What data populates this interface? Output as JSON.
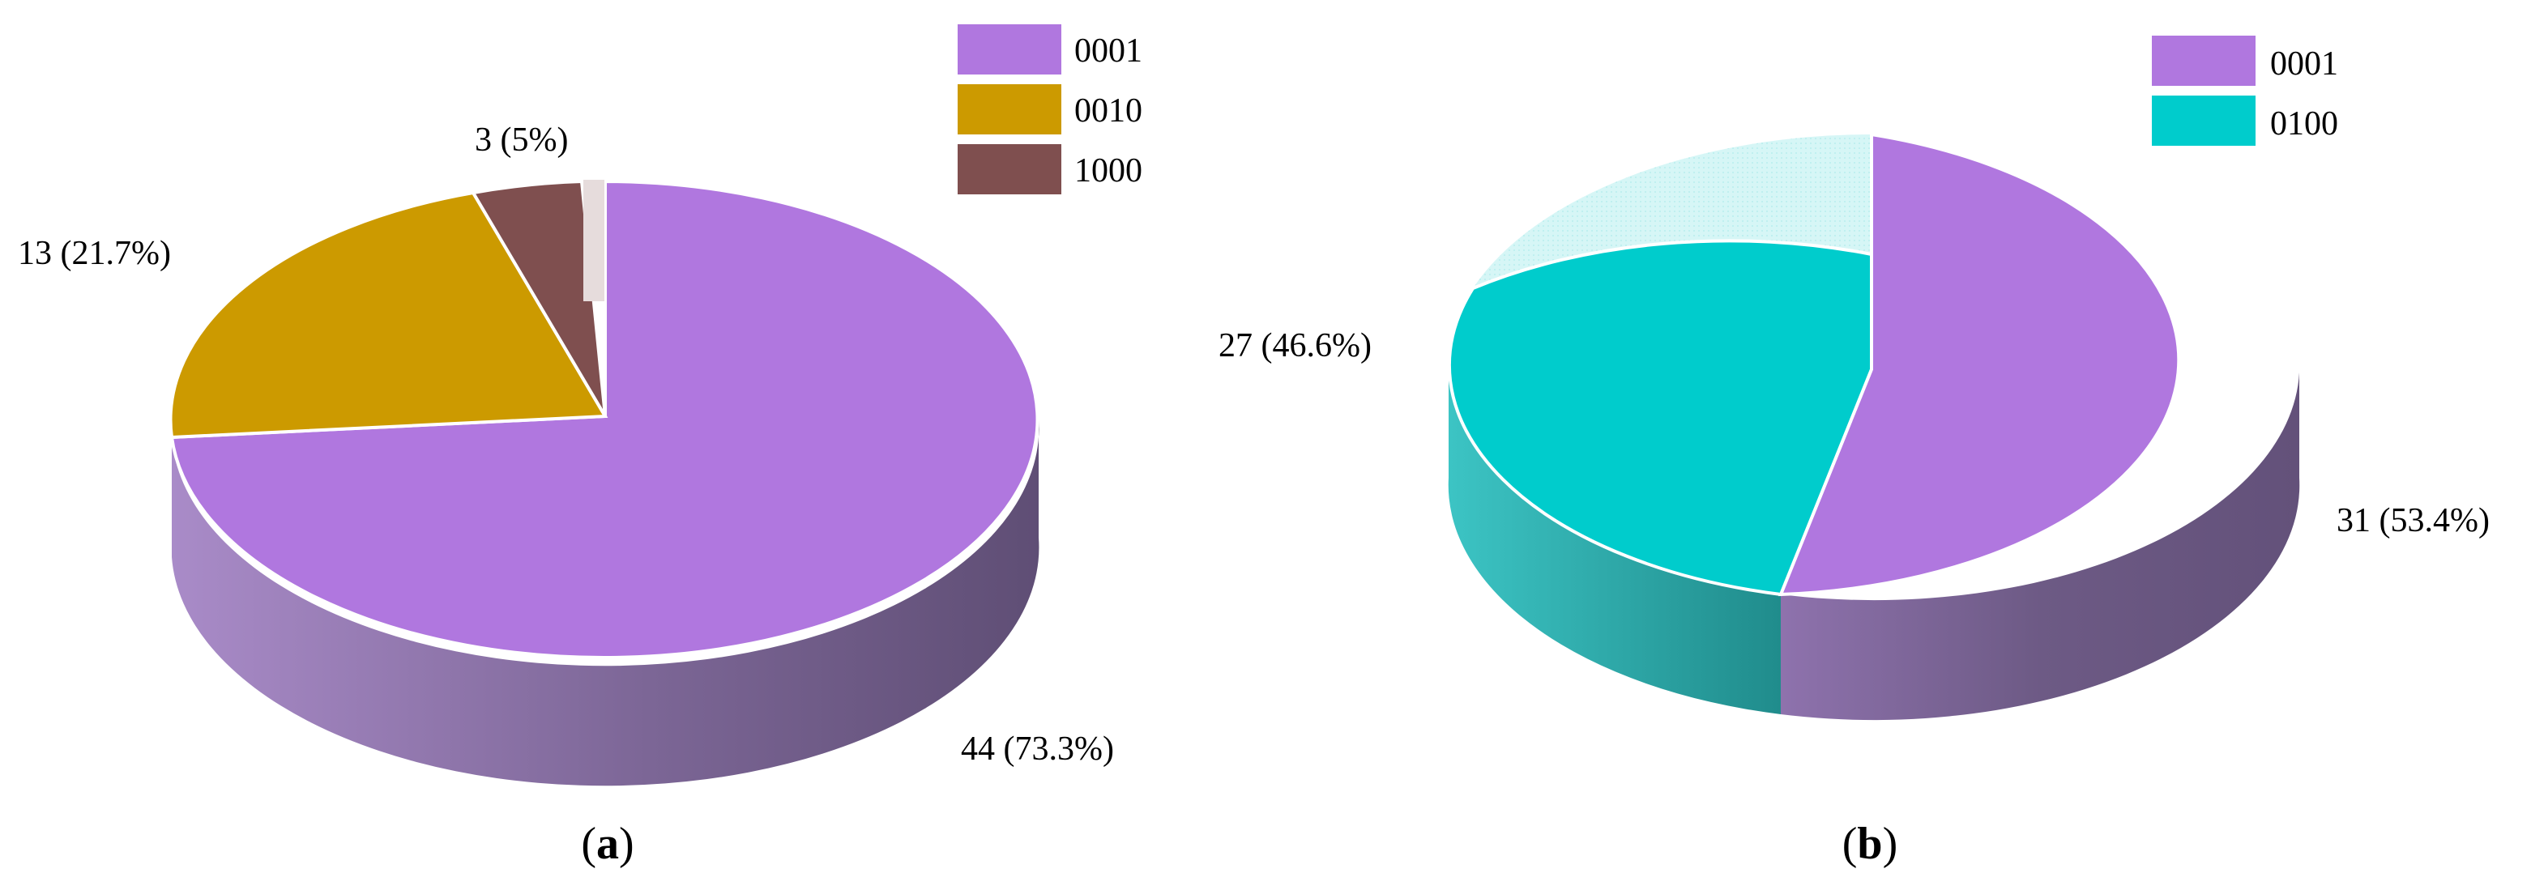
{
  "colors": {
    "0001": "#B077DF",
    "0010": "#CC9A00",
    "1000": "#7F4F4F",
    "0100": "#00CCCC",
    "edge": "#FFFFFF"
  },
  "chart_data": [
    {
      "type": "pie",
      "panel": "a",
      "legend_position": "top-right",
      "slices": [
        {
          "name": "0001",
          "value": 44,
          "label": "44 (73.3%)"
        },
        {
          "name": "0010",
          "value": 13,
          "label": "13 (21.7%)"
        },
        {
          "name": "1000",
          "value": 3,
          "label": "3 (5%)"
        }
      ],
      "legend": [
        "0001",
        "0010",
        "1000"
      ]
    },
    {
      "type": "pie",
      "panel": "b",
      "legend_position": "top-right",
      "slices": [
        {
          "name": "0001",
          "value": 31,
          "label": "31 (53.4%)"
        },
        {
          "name": "0100",
          "value": 27,
          "label": "27 (46.6%)"
        }
      ],
      "legend": [
        "0001",
        "0100"
      ]
    }
  ]
}
